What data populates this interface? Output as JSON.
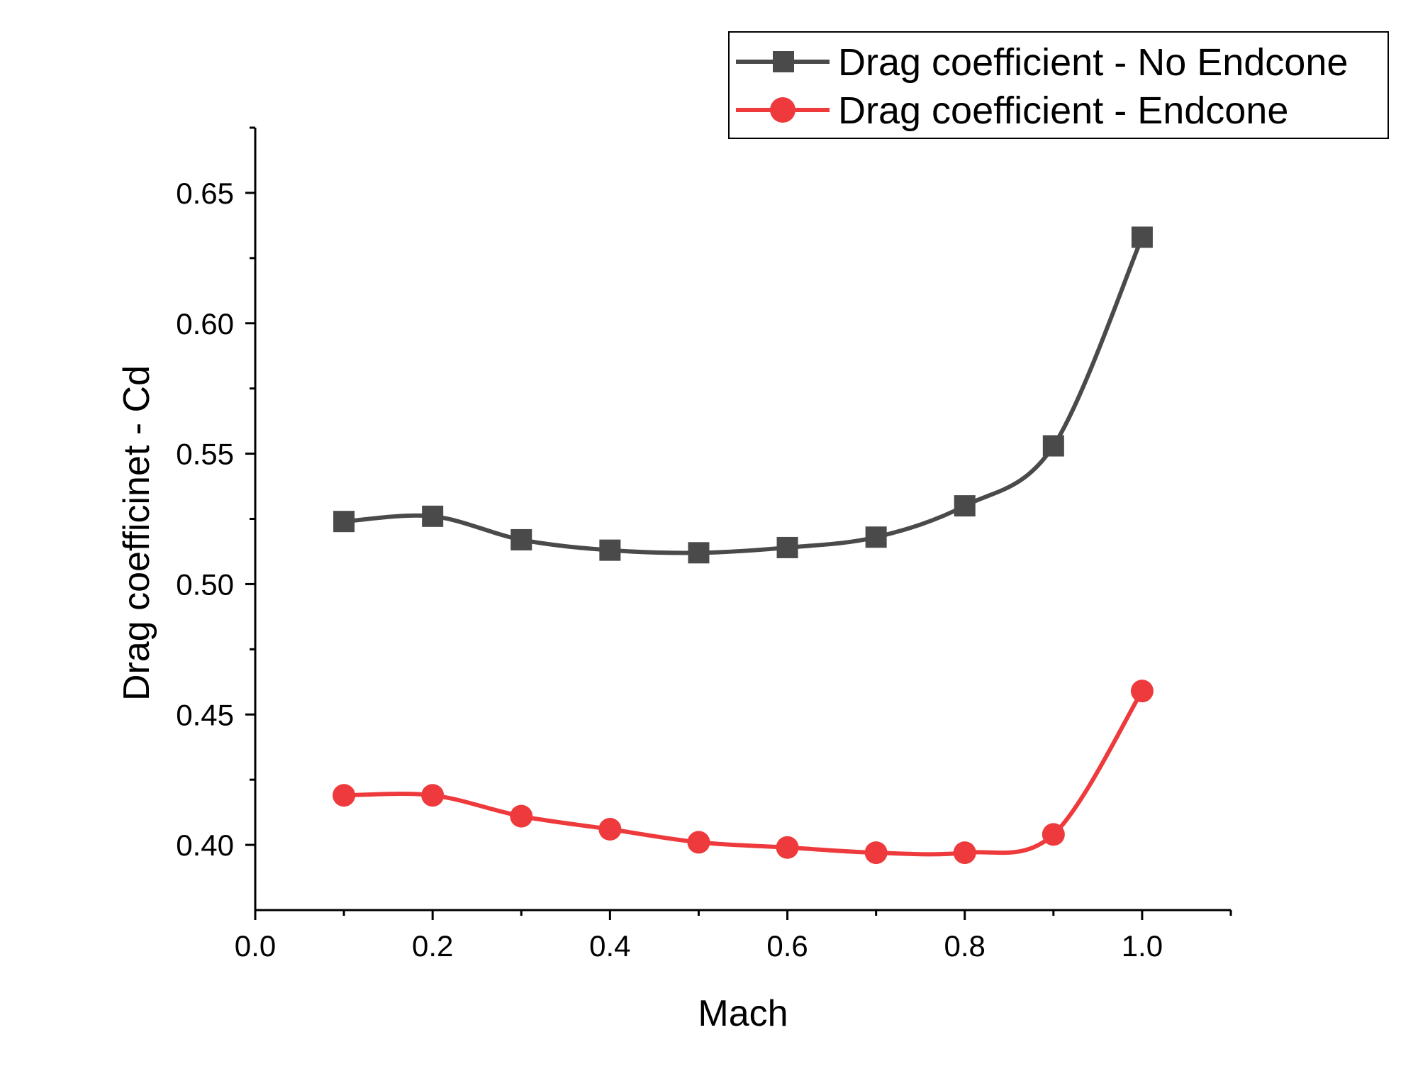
{
  "chart_data": {
    "type": "line",
    "title": "",
    "xlabel": "Mach",
    "ylabel": "Drag coefficinet - Cd",
    "xlim": [
      0.0,
      1.1
    ],
    "ylim": [
      0.375,
      0.675
    ],
    "xticks": [
      0.0,
      0.2,
      0.4,
      0.6,
      0.8,
      1.0
    ],
    "xtick_labels": [
      "0.0",
      "0.2",
      "0.4",
      "0.6",
      "0.8",
      "1.0"
    ],
    "yticks": [
      0.4,
      0.45,
      0.5,
      0.55,
      0.6,
      0.65
    ],
    "ytick_labels": [
      "0.40",
      "0.45",
      "0.50",
      "0.55",
      "0.60",
      "0.65"
    ],
    "grid": false,
    "legend_position": "top-right",
    "x": [
      0.1,
      0.2,
      0.3,
      0.4,
      0.5,
      0.6,
      0.7,
      0.8,
      0.9,
      1.0
    ],
    "series": [
      {
        "name": "Drag coefficient - No Endcone",
        "marker": "square",
        "color": "#4a4a4a",
        "values": [
          0.524,
          0.526,
          0.517,
          0.513,
          0.512,
          0.514,
          0.518,
          0.53,
          0.553,
          0.633
        ]
      },
      {
        "name": "Drag coefficient - Endcone",
        "marker": "circle",
        "color": "#ee3a3c",
        "values": [
          0.419,
          0.419,
          0.411,
          0.406,
          0.401,
          0.399,
          0.397,
          0.397,
          0.404,
          0.459
        ]
      }
    ]
  }
}
